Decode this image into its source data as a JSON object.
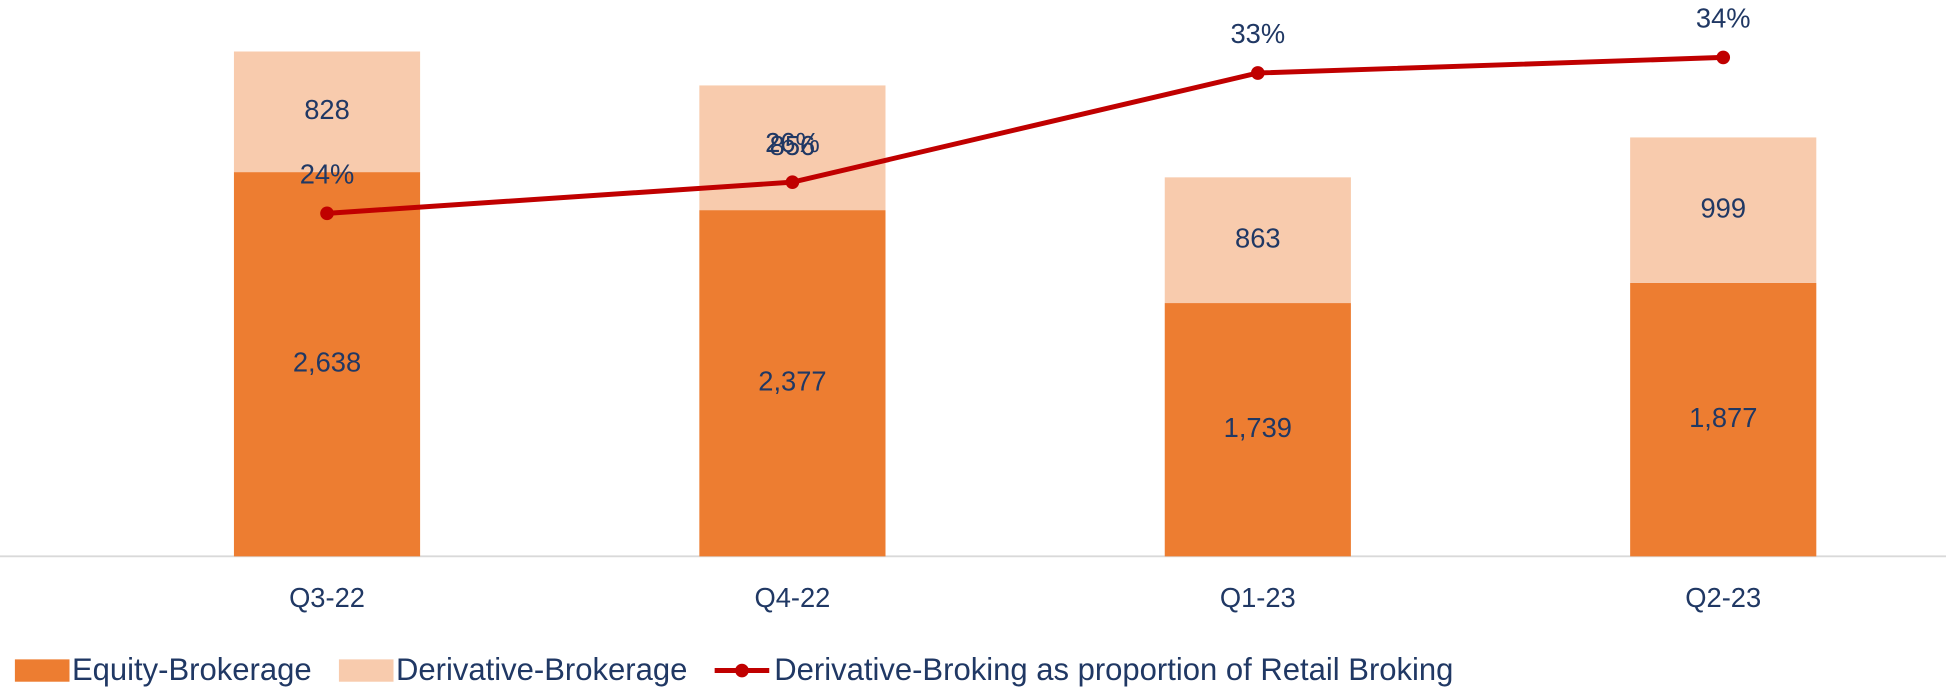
{
  "chart_data": {
    "type": "bar",
    "stacked": true,
    "categories": [
      "Q3-22",
      "Q4-22",
      "Q1-23",
      "Q2-23"
    ],
    "ylim": [
      0,
      3800
    ],
    "y2lim": [
      2,
      37.5
    ],
    "series": [
      {
        "name": "Equity-Brokerage",
        "type": "bar",
        "color": "#ed7d31",
        "values": [
          2638,
          2377,
          1739,
          1877
        ],
        "value_labels": [
          "2,638",
          "2,377",
          "1,739",
          "1,877"
        ]
      },
      {
        "name": "Derivative-Brokerage",
        "type": "bar",
        "color": "#f8cbad",
        "values": [
          828,
          856,
          863,
          999
        ]
      },
      {
        "name": "Derivative-Broking as proportion of Retail Broking",
        "type": "line",
        "axis": "y2",
        "color": "#c00000",
        "values": [
          24,
          26,
          33,
          34
        ],
        "value_labels": [
          "24%",
          "26%",
          "33%",
          "34%"
        ]
      }
    ]
  }
}
